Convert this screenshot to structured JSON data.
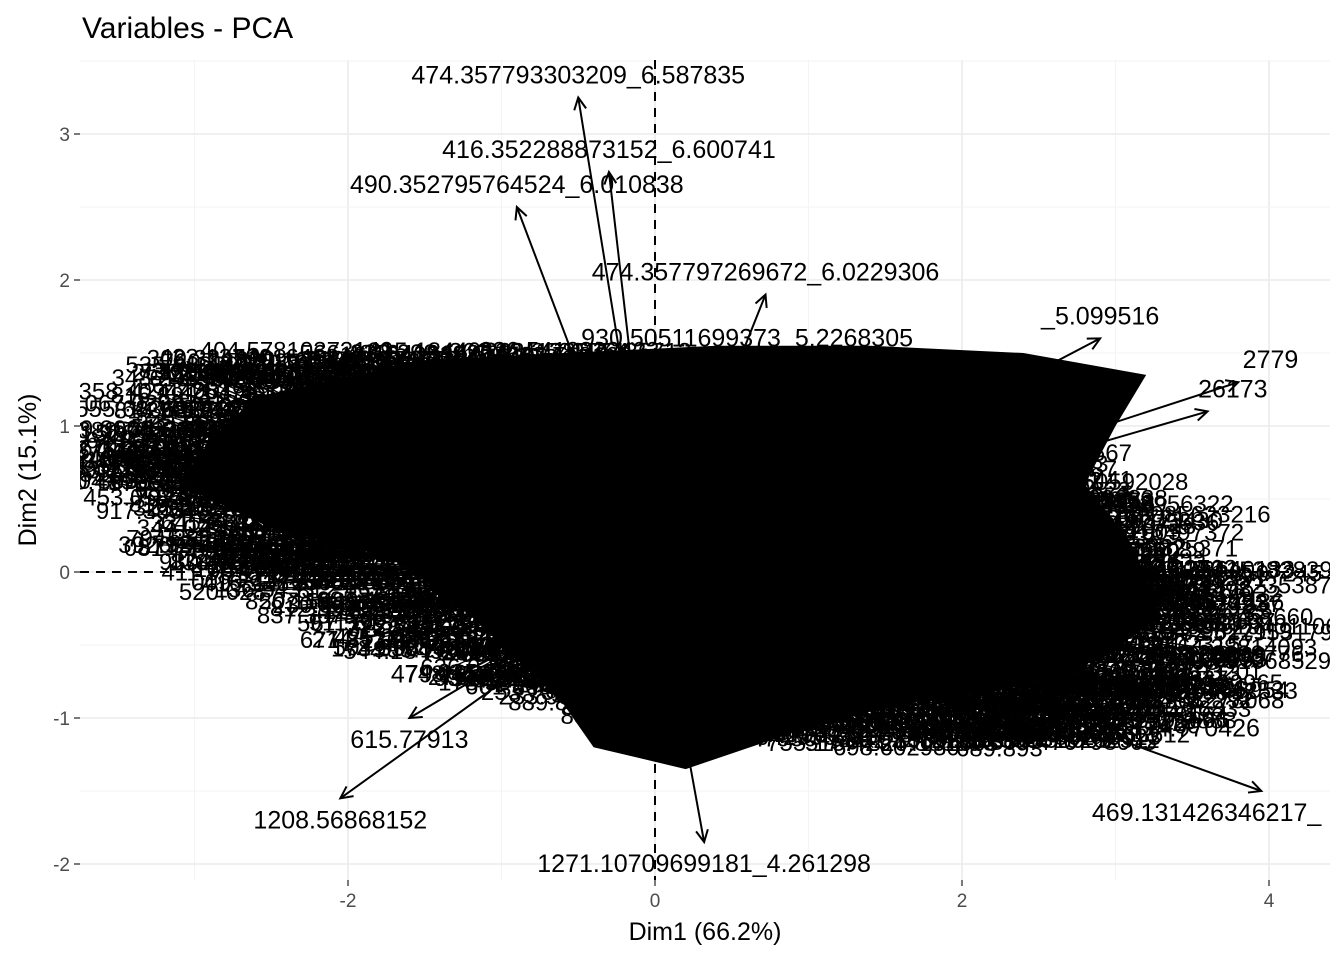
{
  "chart_data": {
    "type": "scatter",
    "subtype": "pca-variable-arrows",
    "title": "Variables - PCA",
    "xlabel": "Dim1 (66.2%)",
    "ylabel": "Dim2 (15.1%)",
    "xlim": [
      -3.7,
      4.4
    ],
    "ylim": [
      -2.1,
      3.4
    ],
    "x_ticks": [
      -2,
      0,
      2,
      4
    ],
    "y_ticks": [
      -2,
      -1,
      0,
      1,
      2,
      3
    ],
    "grid": true,
    "reference_lines": {
      "x": 0,
      "y": 0,
      "style": "dashed"
    },
    "variables": [
      {
        "name": "474.357793303209_6.587835",
        "x": -0.5,
        "y": 3.25
      },
      {
        "name": "416.352288873152_6.600741",
        "x": -0.3,
        "y": 2.74
      },
      {
        "name": "490.352795764524_6.010838",
        "x": -0.9,
        "y": 2.5
      },
      {
        "name": "474.357797269672_6.0229306",
        "x": 0.72,
        "y": 1.9
      },
      {
        "name": "930.50511699373_5.2268305",
        "x": 0.6,
        "y": 1.45
      },
      {
        "name": "414.33647713068",
        "x": -1.6,
        "y": 1.3
      },
      {
        "name": "469.131426346217_",
        "x": 3.95,
        "y": -1.5
      },
      {
        "name": "1271.10709699181_4.261298",
        "x": 0.32,
        "y": -1.85
      },
      {
        "name": "1208.56868152",
        "x": -2.05,
        "y": -1.55
      },
      {
        "name": "615.77913",
        "x": -1.6,
        "y": -1.0
      },
      {
        "name": "479.18865191",
        "x": -1.2,
        "y": -0.55
      },
      {
        "name": "201.148",
        "x": -1.1,
        "y": -0.4
      },
      {
        "name": "385.60",
        "x": -1.4,
        "y": -0.25
      },
      {
        "name": "451.68",
        "x": -2.3,
        "y": 0.13
      },
      {
        "name": "_4.770426",
        "x": 3.55,
        "y": -0.92
      },
      {
        "name": "_3655",
        "x": 3.6,
        "y": -0.45
      },
      {
        "name": "7308",
        "x": 3.3,
        "y": -0.2
      },
      {
        "name": "26173",
        "x": 3.6,
        "y": 1.1
      },
      {
        "name": "_5.099516",
        "x": 2.9,
        "y": 1.6
      },
      {
        "name": "2779",
        "x": 3.8,
        "y": 1.3
      }
    ]
  }
}
